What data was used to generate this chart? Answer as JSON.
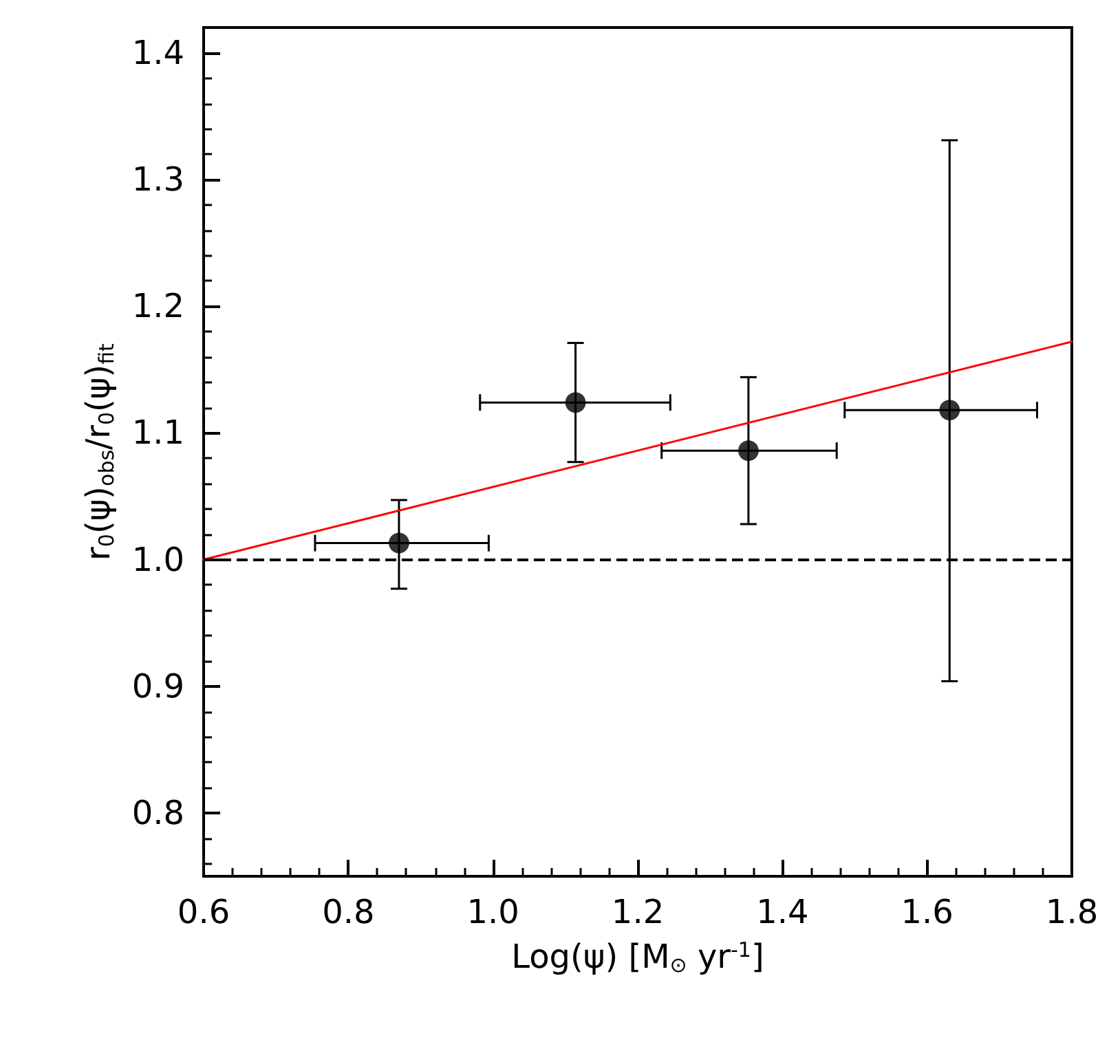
{
  "chart_data": {
    "type": "scatter",
    "xlabel": "Log(ψ) [M$_{⊙}$ yr$^{-1}$]",
    "ylabel": "r$_{0}$(ψ)$_{obs}$/r$_{0}$(ψ)$_{fit}$",
    "xlim": [
      0.6,
      1.8
    ],
    "xticks": [
      0.6,
      0.8,
      {
        "value": 1,
        "label": "1.0"
      },
      1.2,
      1.4,
      1.6,
      1.8
    ],
    "ylim": [
      0.75,
      1.42
    ],
    "yticks": [
      0.8,
      0.9,
      {
        "value": 1,
        "label": "1.0"
      },
      1.1,
      1.2,
      1.3,
      1.4
    ],
    "marker": "circle",
    "grid": false,
    "series": [
      {
        "color": "#000000",
        "x": [
          0.87,
          1.114,
          1.353,
          1.631
        ],
        "values": [
          1.013,
          1.124,
          1.086,
          1.118
        ],
        "errors": [
          [
            0.977,
            1.047
          ],
          [
            1.077,
            1.171
          ],
          [
            1.028,
            1.144
          ],
          [
            0.904,
            1.331
          ]
        ],
        "xerrors": [
          [
            0.754,
            0.994
          ],
          [
            0.982,
            1.245
          ],
          [
            1.233,
            1.475
          ],
          [
            1.486,
            1.752
          ]
        ]
      },
      {
        "type": "line",
        "color": "#ff0000",
        "marker": "none",
        "x": [
          0.6,
          1.8
        ],
        "values": [
          1.0,
          1.172
        ]
      }
    ],
    "ref_lines": [
      {
        "axis": "y",
        "value": 1.0,
        "color": "#000000",
        "line_style": "dashed"
      }
    ]
  }
}
